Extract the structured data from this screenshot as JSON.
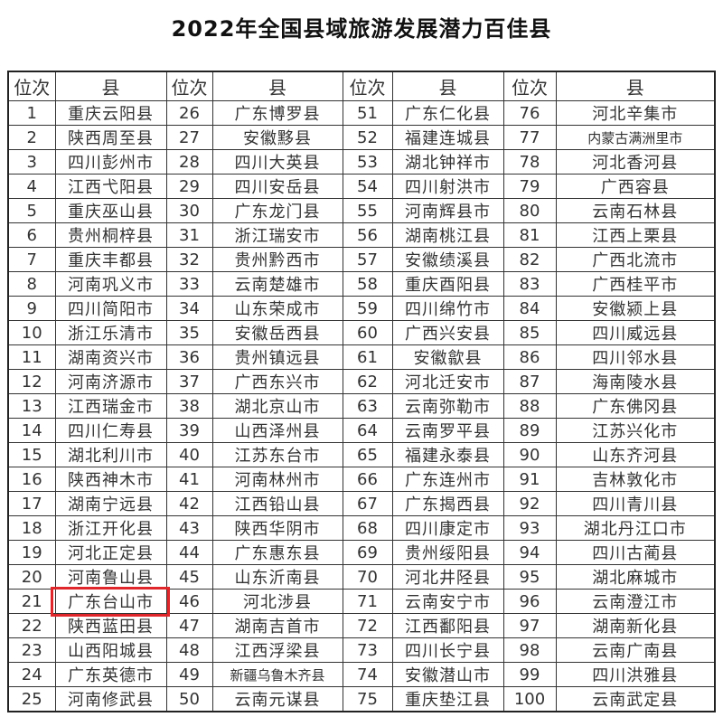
{
  "title": "2022年全国县域旅游发展潜力百佳县",
  "table": {
    "headers": {
      "rank": "位次",
      "county": "县"
    },
    "highlight_color": "#e0262a",
    "highlighted_rank": 21,
    "rows": [
      {
        "rank": "1",
        "name": "重庆云阳县"
      },
      {
        "rank": "2",
        "name": "陕西周至县"
      },
      {
        "rank": "3",
        "name": "四川彭州市"
      },
      {
        "rank": "4",
        "name": "江西弋阳县"
      },
      {
        "rank": "5",
        "name": "重庆巫山县"
      },
      {
        "rank": "6",
        "name": "贵州桐梓县"
      },
      {
        "rank": "7",
        "name": "重庆丰都县"
      },
      {
        "rank": "8",
        "name": "河南巩义市"
      },
      {
        "rank": "9",
        "name": "四川简阳市"
      },
      {
        "rank": "10",
        "name": "浙江乐清市"
      },
      {
        "rank": "11",
        "name": "湖南资兴市"
      },
      {
        "rank": "12",
        "name": "河南济源市"
      },
      {
        "rank": "13",
        "name": "江西瑞金市"
      },
      {
        "rank": "14",
        "name": "四川仁寿县"
      },
      {
        "rank": "15",
        "name": "湖北利川市"
      },
      {
        "rank": "16",
        "name": "陕西神木市"
      },
      {
        "rank": "17",
        "name": "湖南宁远县"
      },
      {
        "rank": "18",
        "name": "浙江开化县"
      },
      {
        "rank": "19",
        "name": "河北正定县"
      },
      {
        "rank": "20",
        "name": "河南鲁山县"
      },
      {
        "rank": "21",
        "name": "广东台山市"
      },
      {
        "rank": "22",
        "name": "陕西蓝田县"
      },
      {
        "rank": "23",
        "name": "山西阳城县"
      },
      {
        "rank": "24",
        "name": "广东英德市"
      },
      {
        "rank": "25",
        "name": "河南修武县"
      },
      {
        "rank": "26",
        "name": "广东博罗县"
      },
      {
        "rank": "27",
        "name": "安徽黟县"
      },
      {
        "rank": "28",
        "name": "四川大英县"
      },
      {
        "rank": "29",
        "name": "四川安岳县"
      },
      {
        "rank": "30",
        "name": "广东龙门县"
      },
      {
        "rank": "31",
        "name": "浙江瑞安市"
      },
      {
        "rank": "32",
        "name": "贵州黔西市"
      },
      {
        "rank": "33",
        "name": "云南楚雄市"
      },
      {
        "rank": "34",
        "name": "山东荣成市"
      },
      {
        "rank": "35",
        "name": "安徽岳西县"
      },
      {
        "rank": "36",
        "name": "贵州镇远县"
      },
      {
        "rank": "37",
        "name": "广西东兴市"
      },
      {
        "rank": "38",
        "name": "湖北京山市"
      },
      {
        "rank": "39",
        "name": "山西泽州县"
      },
      {
        "rank": "40",
        "name": "江苏东台市"
      },
      {
        "rank": "41",
        "name": "河南林州市"
      },
      {
        "rank": "42",
        "name": "江西铅山县"
      },
      {
        "rank": "43",
        "name": "陕西华阴市"
      },
      {
        "rank": "44",
        "name": "广东惠东县"
      },
      {
        "rank": "45",
        "name": "山东沂南县"
      },
      {
        "rank": "46",
        "name": "河北涉县"
      },
      {
        "rank": "47",
        "name": "湖南吉首市"
      },
      {
        "rank": "48",
        "name": "江西浮梁县"
      },
      {
        "rank": "49",
        "name": "新疆乌鲁木齐县"
      },
      {
        "rank": "50",
        "name": "云南元谋县"
      },
      {
        "rank": "51",
        "name": "广东仁化县"
      },
      {
        "rank": "52",
        "name": "福建连城县"
      },
      {
        "rank": "53",
        "name": "湖北钟祥市"
      },
      {
        "rank": "54",
        "name": "四川射洪市"
      },
      {
        "rank": "55",
        "name": "河南辉县市"
      },
      {
        "rank": "56",
        "name": "湖南桃江县"
      },
      {
        "rank": "57",
        "name": "安徽绩溪县"
      },
      {
        "rank": "58",
        "name": "重庆酉阳县"
      },
      {
        "rank": "59",
        "name": "四川绵竹市"
      },
      {
        "rank": "60",
        "name": "广西兴安县"
      },
      {
        "rank": "61",
        "name": "安徽歙县"
      },
      {
        "rank": "62",
        "name": "河北迁安市"
      },
      {
        "rank": "63",
        "name": "云南弥勒市"
      },
      {
        "rank": "64",
        "name": "云南罗平县"
      },
      {
        "rank": "65",
        "name": "福建永泰县"
      },
      {
        "rank": "66",
        "name": "广东连州市"
      },
      {
        "rank": "67",
        "name": "广东揭西县"
      },
      {
        "rank": "68",
        "name": "四川康定市"
      },
      {
        "rank": "69",
        "name": "贵州绥阳县"
      },
      {
        "rank": "70",
        "name": "河北井陉县"
      },
      {
        "rank": "71",
        "name": "云南安宁市"
      },
      {
        "rank": "72",
        "name": "江西鄱阳县"
      },
      {
        "rank": "73",
        "name": "四川长宁县"
      },
      {
        "rank": "74",
        "name": "安徽潜山市"
      },
      {
        "rank": "75",
        "name": "重庆垫江县"
      },
      {
        "rank": "76",
        "name": "河北辛集市"
      },
      {
        "rank": "77",
        "name": "内蒙古满洲里市"
      },
      {
        "rank": "78",
        "name": "河北香河县"
      },
      {
        "rank": "79",
        "name": "广西容县"
      },
      {
        "rank": "80",
        "name": "云南石林县"
      },
      {
        "rank": "81",
        "name": "江西上栗县"
      },
      {
        "rank": "82",
        "name": "广西北流市"
      },
      {
        "rank": "83",
        "name": "广西桂平市"
      },
      {
        "rank": "84",
        "name": "安徽颍上县"
      },
      {
        "rank": "85",
        "name": "四川威远县"
      },
      {
        "rank": "86",
        "name": "四川邻水县"
      },
      {
        "rank": "87",
        "name": "海南陵水县"
      },
      {
        "rank": "88",
        "name": "广东佛冈县"
      },
      {
        "rank": "89",
        "name": "江苏兴化市"
      },
      {
        "rank": "90",
        "name": "山东齐河县"
      },
      {
        "rank": "91",
        "name": "吉林敦化市"
      },
      {
        "rank": "92",
        "name": "四川青川县"
      },
      {
        "rank": "93",
        "name": "湖北丹江口市"
      },
      {
        "rank": "94",
        "name": "四川古蔺县"
      },
      {
        "rank": "95",
        "name": "湖北麻城市"
      },
      {
        "rank": "96",
        "name": "云南澄江市"
      },
      {
        "rank": "97",
        "name": "湖南新化县"
      },
      {
        "rank": "98",
        "name": "云南广南县"
      },
      {
        "rank": "99",
        "name": "四川洪雅县"
      },
      {
        "rank": "100",
        "name": "云南武定县"
      }
    ]
  }
}
